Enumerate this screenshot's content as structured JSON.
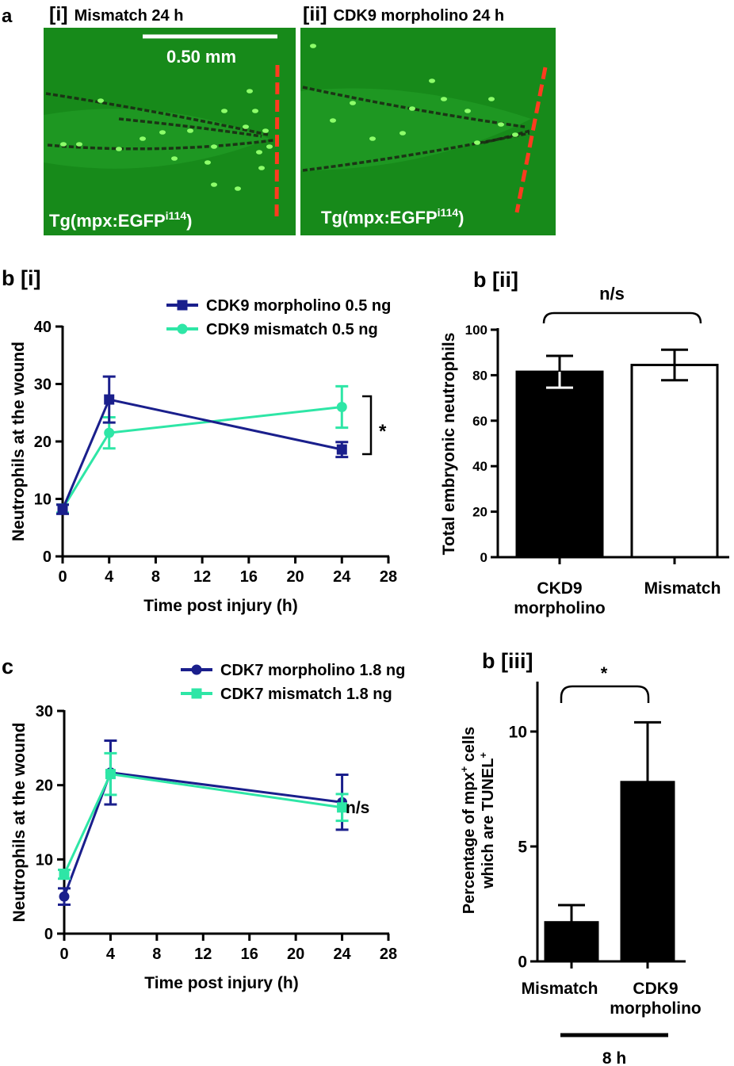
{
  "colors": {
    "navy": "#1a1f8c",
    "mint": "#2ee6a6",
    "micro_bg": "#178a1a",
    "scale_dash": "#ff3b1f",
    "cell": "#8dff6a",
    "tail_edge": "#1b2a14",
    "black": "#000000",
    "white": "#ffffff"
  },
  "panel_a": {
    "letter": "a",
    "left": {
      "index": "[i]",
      "title": "Mismatch 24 h",
      "scale_text": "0.50 mm",
      "transgene": "Tg(mpx:EGFP",
      "transgene_sup": "i114",
      "transgene_close": ")"
    },
    "right": {
      "index": "[ii]",
      "title": "CDK9  morpholino 24 h",
      "transgene": "Tg(mpx:EGFP",
      "transgene_sup": "i114",
      "transgene_close": ")"
    }
  },
  "chart_data": [
    {
      "id": "b_i",
      "type": "line",
      "panel_label": "b [i]",
      "xlabel": "Time post injury (h)",
      "ylabel": "Neutrophils at the wound",
      "xlim": [
        0,
        28
      ],
      "ylim": [
        0,
        40
      ],
      "xticks": [
        0,
        4,
        8,
        12,
        16,
        20,
        24,
        28
      ],
      "yticks": [
        0,
        10,
        20,
        30,
        40
      ],
      "legend": "top-right",
      "series": [
        {
          "name": "CDK9 morpholino 0.5 ng",
          "color": "#1a1f8c",
          "marker": "square",
          "x": [
            0,
            4,
            24
          ],
          "y": [
            8.2,
            27.3,
            18.6
          ],
          "err": [
            0.8,
            4.0,
            1.3
          ]
        },
        {
          "name": "CDK9 mismatch 0.5 ng",
          "color": "#2ee6a6",
          "marker": "circle",
          "x": [
            0,
            4,
            24
          ],
          "y": [
            8.3,
            21.5,
            26.0
          ],
          "err": [
            0.7,
            2.7,
            3.6
          ]
        }
      ],
      "annotation": "*"
    },
    {
      "id": "b_ii",
      "type": "bar",
      "panel_label": "b [ii]",
      "ylabel": "Total embryonic neutrophils",
      "ylim": [
        0,
        100
      ],
      "yticks": [
        0,
        20,
        40,
        60,
        80,
        100
      ],
      "categories": [
        "CKD9 morpholino",
        "Mismatch"
      ],
      "category_lines": [
        [
          "CKD9",
          "morpholino"
        ],
        [
          "Mismatch"
        ]
      ],
      "values": [
        81.5,
        84.5
      ],
      "errors": [
        7.0,
        6.7
      ],
      "fills": [
        "#000000",
        "#ffffff"
      ],
      "annotation": "n/s"
    },
    {
      "id": "c",
      "type": "line",
      "panel_label": "c",
      "xlabel": "Time post injury (h)",
      "ylabel": "Neutrophils at the wound",
      "xlim": [
        0,
        28
      ],
      "ylim": [
        0,
        30
      ],
      "xticks": [
        0,
        4,
        8,
        12,
        16,
        20,
        24,
        28
      ],
      "yticks": [
        0,
        10,
        20,
        30
      ],
      "legend": "top-right",
      "series": [
        {
          "name": "CDK7 morpholino 1.8 ng",
          "color": "#1a1f8c",
          "marker": "circle",
          "x": [
            0,
            4,
            24
          ],
          "y": [
            5.0,
            21.7,
            17.7
          ],
          "err": [
            1.1,
            4.3,
            3.7
          ]
        },
        {
          "name": "CDK7 mismatch 1.8 ng",
          "color": "#2ee6a6",
          "marker": "square",
          "x": [
            0,
            4,
            24
          ],
          "y": [
            8.0,
            21.5,
            17.0
          ],
          "err": [
            0.6,
            2.8,
            1.8
          ]
        }
      ],
      "annotation": "n/s"
    },
    {
      "id": "b_iii",
      "type": "bar",
      "panel_label": "b [iii]",
      "ylabel_lines": [
        "Percentage of mpx",
        "which are TUNEL"
      ],
      "ylabel_sup": "+",
      "ylabel_tail": " cells",
      "ylim": [
        0,
        12
      ],
      "yticks": [
        0,
        5,
        10
      ],
      "categories": [
        "Mismatch",
        "CDK9 morpholino"
      ],
      "category_lines": [
        [
          "Mismatch"
        ],
        [
          "CDK9",
          "morpholino"
        ]
      ],
      "values": [
        1.7,
        7.8
      ],
      "errors": [
        0.75,
        2.6
      ],
      "fills": [
        "#000000",
        "#000000"
      ],
      "annotation": "*",
      "group_label": "8 h"
    }
  ]
}
